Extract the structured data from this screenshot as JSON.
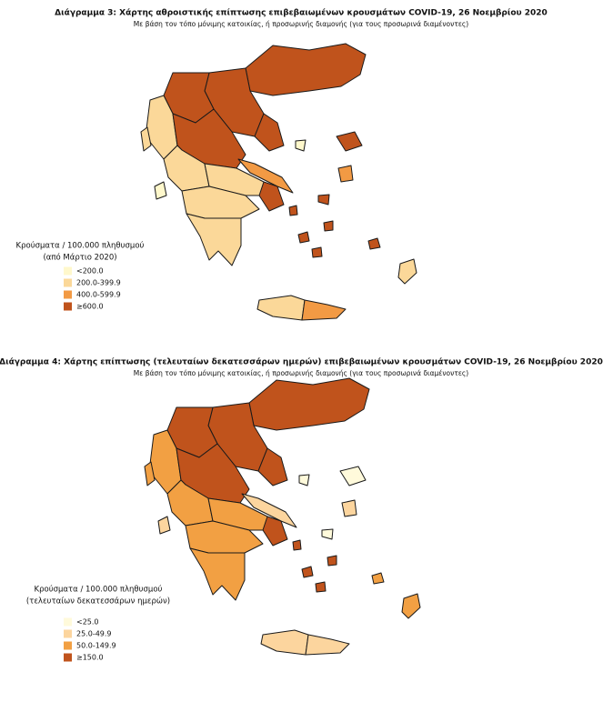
{
  "maps": [
    {
      "title": "Διάγραμμα 3: Χάρτης αθροιστικής επίπτωσης επιβεβαιωμένων κρουσμάτων COVID-19, 26 Νοεμβρίου 2020",
      "subtitle": "Με βάση τον τόπο μόνιμης κατοικίας, ή προσωρινής διαμονής (για τους προσωρινά διαμένοντες)",
      "legend": {
        "title": [
          "Κρούσματα / 100.000 πληθυσμού",
          "(από Μάρτιο 2020)"
        ],
        "items": [
          {
            "label": "<200.0",
            "color": "#fff8cc"
          },
          {
            "label": "200.0-399.9",
            "color": "#fbd899"
          },
          {
            "label": "400.0-599.9",
            "color": "#f29a44"
          },
          {
            "label": "≥600.0",
            "color": "#c0531c"
          }
        ]
      }
    },
    {
      "title": "Διάγραμμα 4: Χάρτης επίπτωσης (τελευταίων δεκατεσσάρων ημερών) επιβεβαιωμένων κρουσμάτων COVID-19, 26 Νοεμβρίου 2020",
      "subtitle": "Με βάση τον τόπο μόνιμης κατοικίας, ή προσωρινής διαμονής (για τους προσωρινά διαμένοντες)",
      "legend": {
        "title": [
          "Κρούσματα / 100.000 πληθυσμού",
          "(τελευταίων δεκατεσσάρων ημερών)"
        ],
        "items": [
          {
            "label": "<25.0",
            "color": "#fffadb"
          },
          {
            "label": "25.0-49.9",
            "color": "#fcd59e"
          },
          {
            "label": "50.0-149.9",
            "color": "#f2a043"
          },
          {
            "label": "≥150.0",
            "color": "#c0531c"
          }
        ]
      }
    }
  ]
}
